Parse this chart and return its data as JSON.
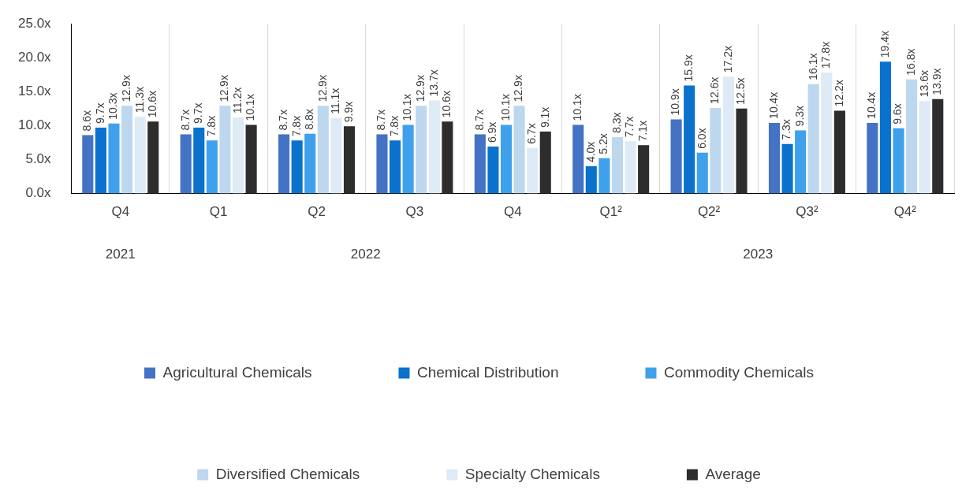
{
  "chart_data": {
    "type": "bar",
    "categories": [
      "Q4",
      "Q1",
      "Q2",
      "Q3",
      "Q4",
      "Q1²",
      "Q2²",
      "Q3²",
      "Q4²"
    ],
    "series": [
      {
        "name": "Agricultural Chemicals",
        "color": "#4472c4",
        "values": [
          8.6,
          8.7,
          8.7,
          8.7,
          8.7,
          10.1,
          10.9,
          10.4,
          10.4
        ],
        "value_labels": [
          "8.6x",
          "8.7x",
          "8.7x",
          "8.7x",
          "8.7x",
          "10.1x",
          "10.9x",
          "10.4x",
          "10.4x"
        ]
      },
      {
        "name": "Chemical Distribution",
        "color": "#0a72cc",
        "values": [
          9.7,
          9.7,
          7.8,
          7.8,
          6.9,
          4.0,
          15.9,
          7.3,
          19.4
        ],
        "value_labels": [
          "9.7x",
          "9.7x",
          "7.8x",
          "7.8x",
          "6.9x",
          "4.0x",
          "15.9x",
          "7.3x",
          "19.4x"
        ]
      },
      {
        "name": "Commodity Chemicals",
        "color": "#3fa1ec",
        "values": [
          10.3,
          7.8,
          8.8,
          10.1,
          10.1,
          5.2,
          6.0,
          9.3,
          9.6
        ],
        "value_labels": [
          "10.3x",
          "7.8x",
          "8.8x",
          "10.1x",
          "10.1x",
          "5.2x",
          "6.0x",
          "9.3x",
          "9.6x"
        ]
      },
      {
        "name": "Diversified Chemicals",
        "color": "#bdd7ee",
        "values": [
          12.9,
          12.9,
          12.9,
          12.9,
          12.9,
          8.3,
          12.6,
          16.1,
          16.8
        ],
        "value_labels": [
          "12.9x",
          "12.9x",
          "12.9x",
          "12.9x",
          "12.9x",
          "8.3x",
          "12.6x",
          "16.1x",
          "16.8x"
        ]
      },
      {
        "name": "Specialty Chemicals",
        "color": "#deeaf6",
        "values": [
          11.3,
          11.2,
          11.1,
          13.7,
          6.7,
          7.7,
          17.2,
          17.8,
          13.6
        ],
        "value_labels": [
          "11.3x",
          "11.2x",
          "11.1x",
          "13.7x",
          "6.7x",
          "7.7x",
          "17.2x",
          "17.8x",
          "13.6x"
        ]
      },
      {
        "name": "Average",
        "color": "#2d2d2d",
        "values": [
          10.6,
          10.1,
          9.9,
          10.6,
          9.1,
          7.1,
          12.5,
          12.2,
          13.9
        ],
        "value_labels": [
          "10.6x",
          "10.1x",
          "9.9x",
          "10.6x",
          "9.1x",
          "7.1x",
          "12.5x",
          "12.2x",
          "13.9x"
        ]
      }
    ],
    "ylim": [
      0,
      25
    ],
    "yticks": [
      {
        "value": 0,
        "label": "0.0x"
      },
      {
        "value": 5,
        "label": "5.0x"
      },
      {
        "value": 10,
        "label": "10.0x"
      },
      {
        "value": 15,
        "label": "15.0x"
      },
      {
        "value": 20,
        "label": "20.0x"
      },
      {
        "value": 25,
        "label": "25.0x"
      }
    ],
    "annotations": [
      "2021",
      "2022",
      "2023"
    ],
    "grid": "x",
    "legend": "bottom"
  }
}
